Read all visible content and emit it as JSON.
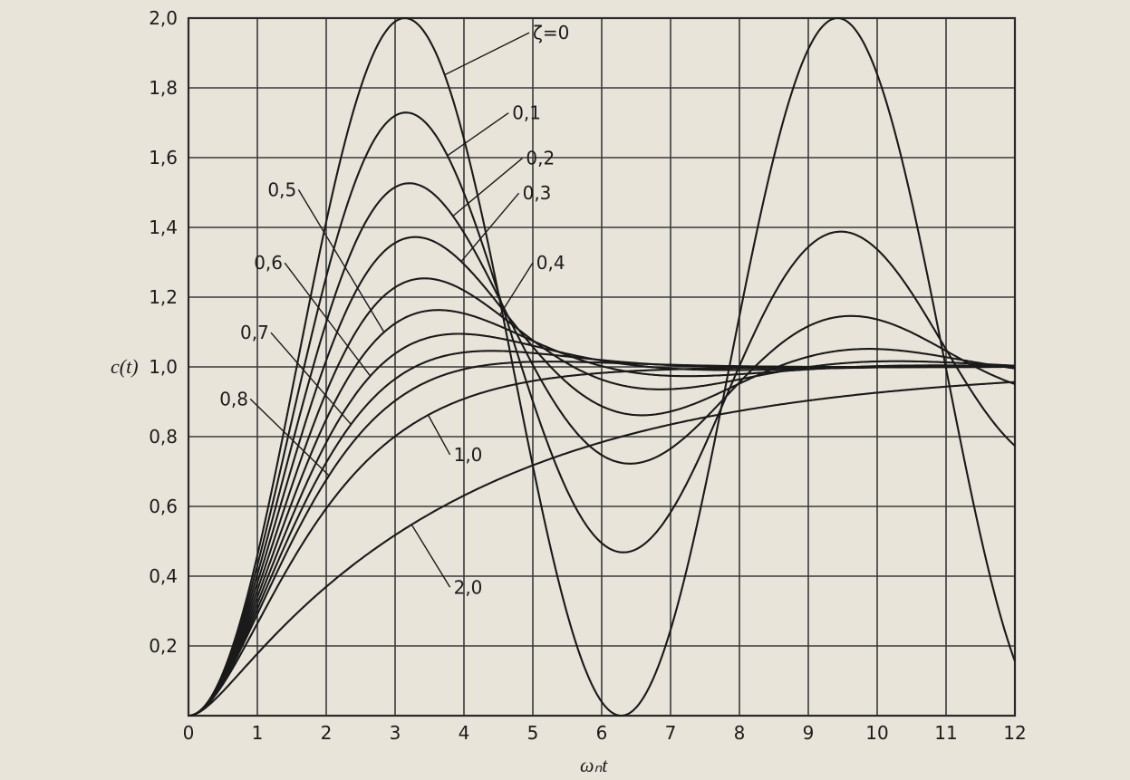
{
  "chart_data": {
    "type": "line",
    "title": "",
    "xlabel": "ωₙt",
    "ylabel": "c(t)",
    "xlim": [
      0,
      12
    ],
    "ylim": [
      0,
      2.0
    ],
    "xticks": [
      "0",
      "1",
      "2",
      "3",
      "4",
      "5",
      "6",
      "7",
      "8",
      "9",
      "10",
      "11",
      "12"
    ],
    "yticks": [
      "0,2",
      "0,4",
      "0,6",
      "0,8",
      "1,0",
      "1,2",
      "1,4",
      "1,6",
      "1,8",
      "2,0"
    ],
    "grid": true,
    "series": [
      {
        "name": "ζ=0",
        "zeta": 0.0,
        "label_at": {
          "x": 5.0,
          "y": 1.94
        }
      },
      {
        "name": "0,1",
        "zeta": 0.1,
        "label_at": {
          "x": 4.7,
          "y": 1.71
        }
      },
      {
        "name": "0,2",
        "zeta": 0.2,
        "label_at": {
          "x": 4.9,
          "y": 1.58
        }
      },
      {
        "name": "0,3",
        "zeta": 0.3,
        "label_at": {
          "x": 4.85,
          "y": 1.48
        }
      },
      {
        "name": "0,4",
        "zeta": 0.4,
        "label_at": {
          "x": 5.05,
          "y": 1.28
        }
      },
      {
        "name": "0,5",
        "zeta": 0.5,
        "label_at": {
          "x": 1.15,
          "y": 1.49
        }
      },
      {
        "name": "0,6",
        "zeta": 0.6,
        "label_at": {
          "x": 0.95,
          "y": 1.28
        }
      },
      {
        "name": "0,7",
        "zeta": 0.7,
        "label_at": {
          "x": 0.75,
          "y": 1.08
        }
      },
      {
        "name": "0,8",
        "zeta": 0.8,
        "label_at": {
          "x": 0.45,
          "y": 0.89
        }
      },
      {
        "name": "1,0",
        "zeta": 1.0,
        "label_at": {
          "x": 3.85,
          "y": 0.73
        }
      },
      {
        "name": "2,0",
        "zeta": 2.0,
        "label_at": {
          "x": 3.85,
          "y": 0.35
        }
      }
    ]
  }
}
